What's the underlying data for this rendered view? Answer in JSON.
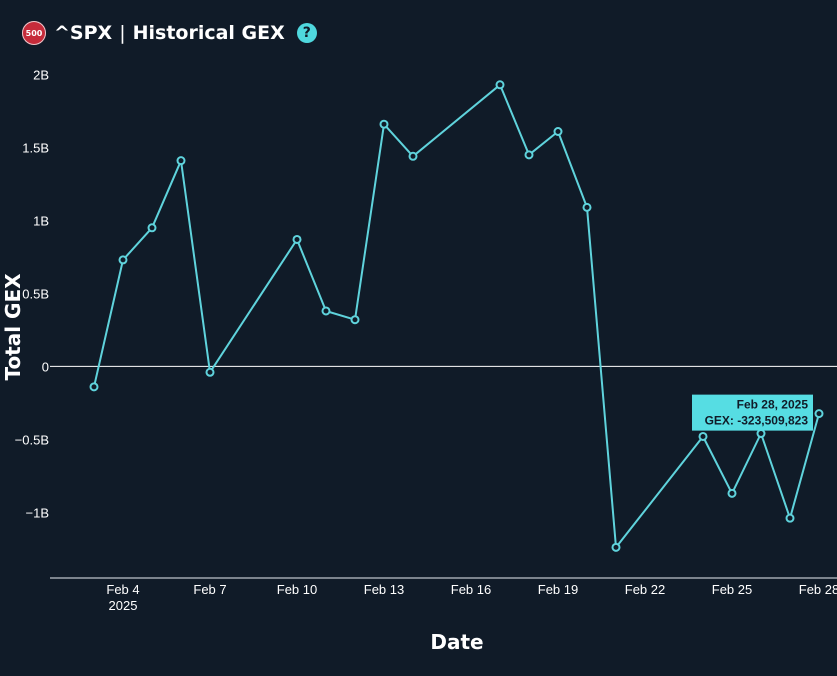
{
  "header": {
    "badge": "500",
    "ticker": "^SPX",
    "separator": "|",
    "title": "Historical GEX",
    "help": "?"
  },
  "colors": {
    "background": "#101b28",
    "line": "#5fd3dc",
    "tooltip_bg": "#56dde3",
    "badge": "#c62b3a",
    "zero_line": "#ffffff"
  },
  "chart_data": {
    "type": "line",
    "xlabel": "Date",
    "ylabel": "Total GEX",
    "ylim": [
      -1450000000,
      2100000000
    ],
    "xlim": [
      "2025-02-01",
      "2025-02-28"
    ],
    "y_ticks": [
      {
        "value": 2000000000,
        "label": "2B"
      },
      {
        "value": 1500000000,
        "label": "1.5B"
      },
      {
        "value": 1000000000,
        "label": "1B"
      },
      {
        "value": 500000000,
        "label": "0.5B"
      },
      {
        "value": 0,
        "label": "0"
      },
      {
        "value": -500000000,
        "label": "−0.5B"
      },
      {
        "value": -1000000000,
        "label": "−1B"
      }
    ],
    "x_ticks": [
      {
        "date": "2025-02-04",
        "label": "Feb 4",
        "sublabel": "2025"
      },
      {
        "date": "2025-02-07",
        "label": "Feb 7"
      },
      {
        "date": "2025-02-10",
        "label": "Feb 10"
      },
      {
        "date": "2025-02-13",
        "label": "Feb 13"
      },
      {
        "date": "2025-02-16",
        "label": "Feb 16"
      },
      {
        "date": "2025-02-19",
        "label": "Feb 19"
      },
      {
        "date": "2025-02-22",
        "label": "Feb 22"
      },
      {
        "date": "2025-02-25",
        "label": "Feb 25"
      },
      {
        "date": "2025-02-28",
        "label": "Feb 28"
      }
    ],
    "series": [
      {
        "points": [
          {
            "x": "2025-02-03",
            "y": -140000000
          },
          {
            "x": "2025-02-04",
            "y": 730000000
          },
          {
            "x": "2025-02-05",
            "y": 950000000
          },
          {
            "x": "2025-02-06",
            "y": 1410000000
          },
          {
            "x": "2025-02-07",
            "y": -40000000
          },
          {
            "x": "2025-02-10",
            "y": 870000000
          },
          {
            "x": "2025-02-11",
            "y": 380000000
          },
          {
            "x": "2025-02-12",
            "y": 320000000
          },
          {
            "x": "2025-02-13",
            "y": 1660000000
          },
          {
            "x": "2025-02-14",
            "y": 1440000000
          },
          {
            "x": "2025-02-17",
            "y": 1930000000
          },
          {
            "x": "2025-02-18",
            "y": 1450000000
          },
          {
            "x": "2025-02-19",
            "y": 1610000000
          },
          {
            "x": "2025-02-20",
            "y": 1090000000
          },
          {
            "x": "2025-02-21",
            "y": -1240000000
          },
          {
            "x": "2025-02-24",
            "y": -480000000
          },
          {
            "x": "2025-02-25",
            "y": -870000000
          },
          {
            "x": "2025-02-26",
            "y": -460000000
          },
          {
            "x": "2025-02-27",
            "y": -1040000000
          },
          {
            "x": "2025-02-28",
            "y": -323509823
          }
        ]
      }
    ],
    "tooltip": {
      "date": "Feb 28, 2025",
      "text": "GEX: -323,509,823"
    }
  }
}
